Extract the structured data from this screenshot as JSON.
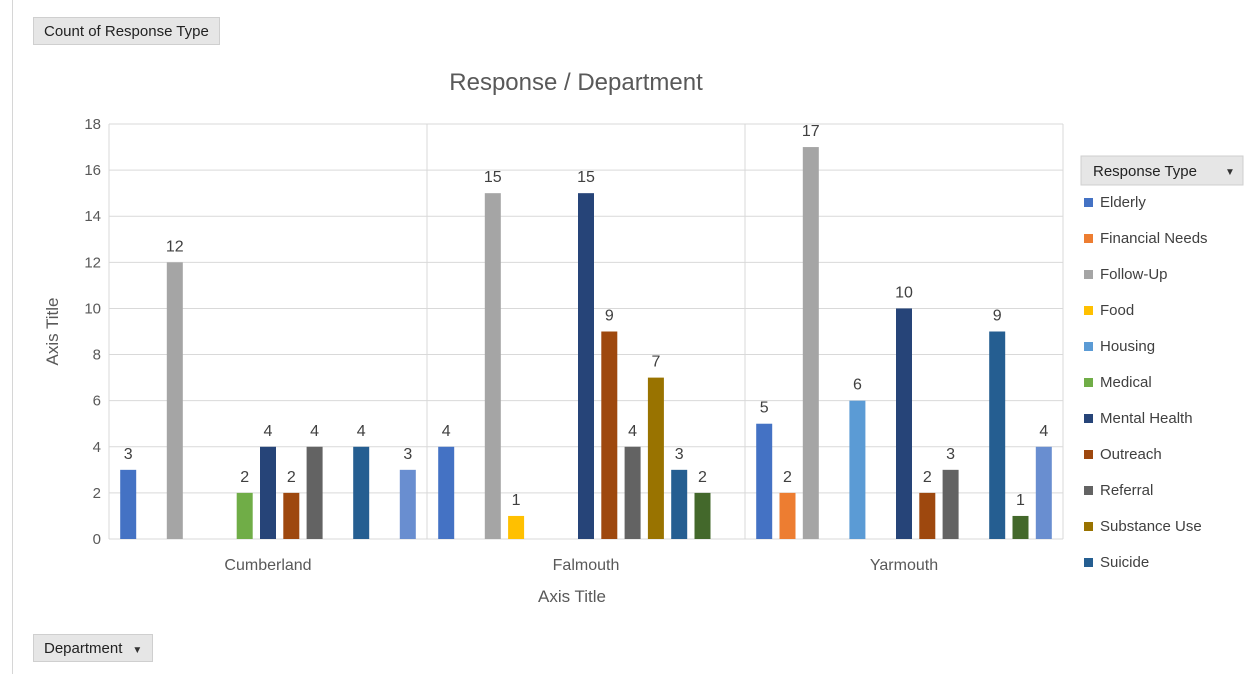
{
  "pivot": {
    "value_field": "Count of Response Type",
    "row_field": "Department",
    "legend_field": "Response Type"
  },
  "chart_data": {
    "type": "bar",
    "title": "Response / Department",
    "xlabel": "Axis Title",
    "ylabel": "Axis Title",
    "ylim": [
      0,
      18
    ],
    "yticks": [
      0,
      2,
      4,
      6,
      8,
      10,
      12,
      14,
      16,
      18
    ],
    "grid": true,
    "legend_position": "right",
    "categories": [
      "Cumberland",
      "Falmouth",
      "Yarmouth"
    ],
    "series": [
      {
        "name": "Elderly",
        "color": "#4472c4",
        "values": [
          3,
          4,
          5
        ]
      },
      {
        "name": "Financial Needs",
        "color": "#ed7d31",
        "values": [
          null,
          null,
          2
        ]
      },
      {
        "name": "Follow-Up",
        "color": "#a5a5a5",
        "values": [
          12,
          15,
          17
        ]
      },
      {
        "name": "Food",
        "color": "#ffc000",
        "values": [
          null,
          1,
          null
        ]
      },
      {
        "name": "Housing",
        "color": "#5b9bd5",
        "values": [
          null,
          null,
          6
        ]
      },
      {
        "name": "Medical",
        "color": "#70ad47",
        "values": [
          2,
          null,
          null
        ]
      },
      {
        "name": "Mental Health",
        "color": "#264478",
        "values": [
          4,
          15,
          10
        ]
      },
      {
        "name": "Outreach",
        "color": "#9e480e",
        "values": [
          2,
          9,
          2
        ]
      },
      {
        "name": "Referral",
        "color": "#636363",
        "values": [
          4,
          4,
          3
        ]
      },
      {
        "name": "Substance Use",
        "color": "#997300",
        "values": [
          null,
          7,
          null
        ]
      },
      {
        "name": "Suicide",
        "color": "#255e91",
        "values": [
          4,
          3,
          9
        ]
      },
      {
        "name": "",
        "color": "#43682b",
        "values": [
          null,
          2,
          1
        ]
      },
      {
        "name": "",
        "color": "#698ed0",
        "values": [
          3,
          null,
          4
        ]
      }
    ]
  }
}
